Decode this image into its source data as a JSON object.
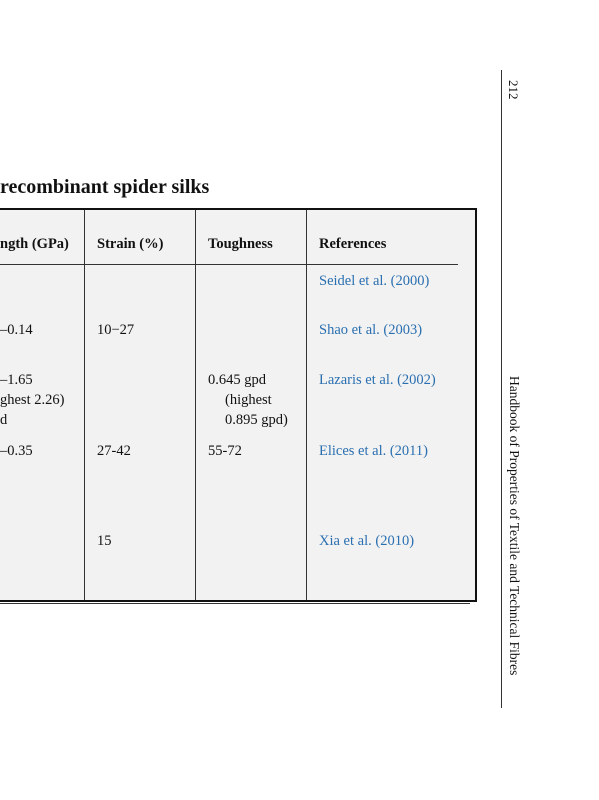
{
  "page": {
    "number": "212",
    "running_title": "Handbook of Properties of Textile and Technical Fibres"
  },
  "caption": "recombinant spider silks",
  "table": {
    "headers": {
      "strength": "ngth (GPa)",
      "strain": "Strain (%)",
      "toughness": "Toughness",
      "references": "References"
    },
    "rows": [
      {
        "strength": "",
        "strain": "",
        "toughness": "",
        "reference": "Seidel et al. (2000)"
      },
      {
        "strength": "–0.14",
        "strain": "10−27",
        "toughness": "",
        "reference": "Shao et al. (2003)"
      },
      {
        "strength": "–1.65",
        "strength_2": "ghest 2.26)",
        "strength_3": "d",
        "strain": "",
        "toughness": "0.645 gpd",
        "toughness_2": "(highest",
        "toughness_3": "0.895 gpd)",
        "reference": "Lazaris et al. (2002)"
      },
      {
        "strength": "–0.35",
        "strain": "27-42",
        "toughness": "55-72",
        "reference": "Elices et al. (2011)"
      },
      {
        "strength": "",
        "strain": "15",
        "toughness": "",
        "reference": "Xia et al. (2010)"
      }
    ]
  },
  "colors": {
    "reference_link": "#2a6fb0",
    "table_fill": "#f2f2f2"
  }
}
